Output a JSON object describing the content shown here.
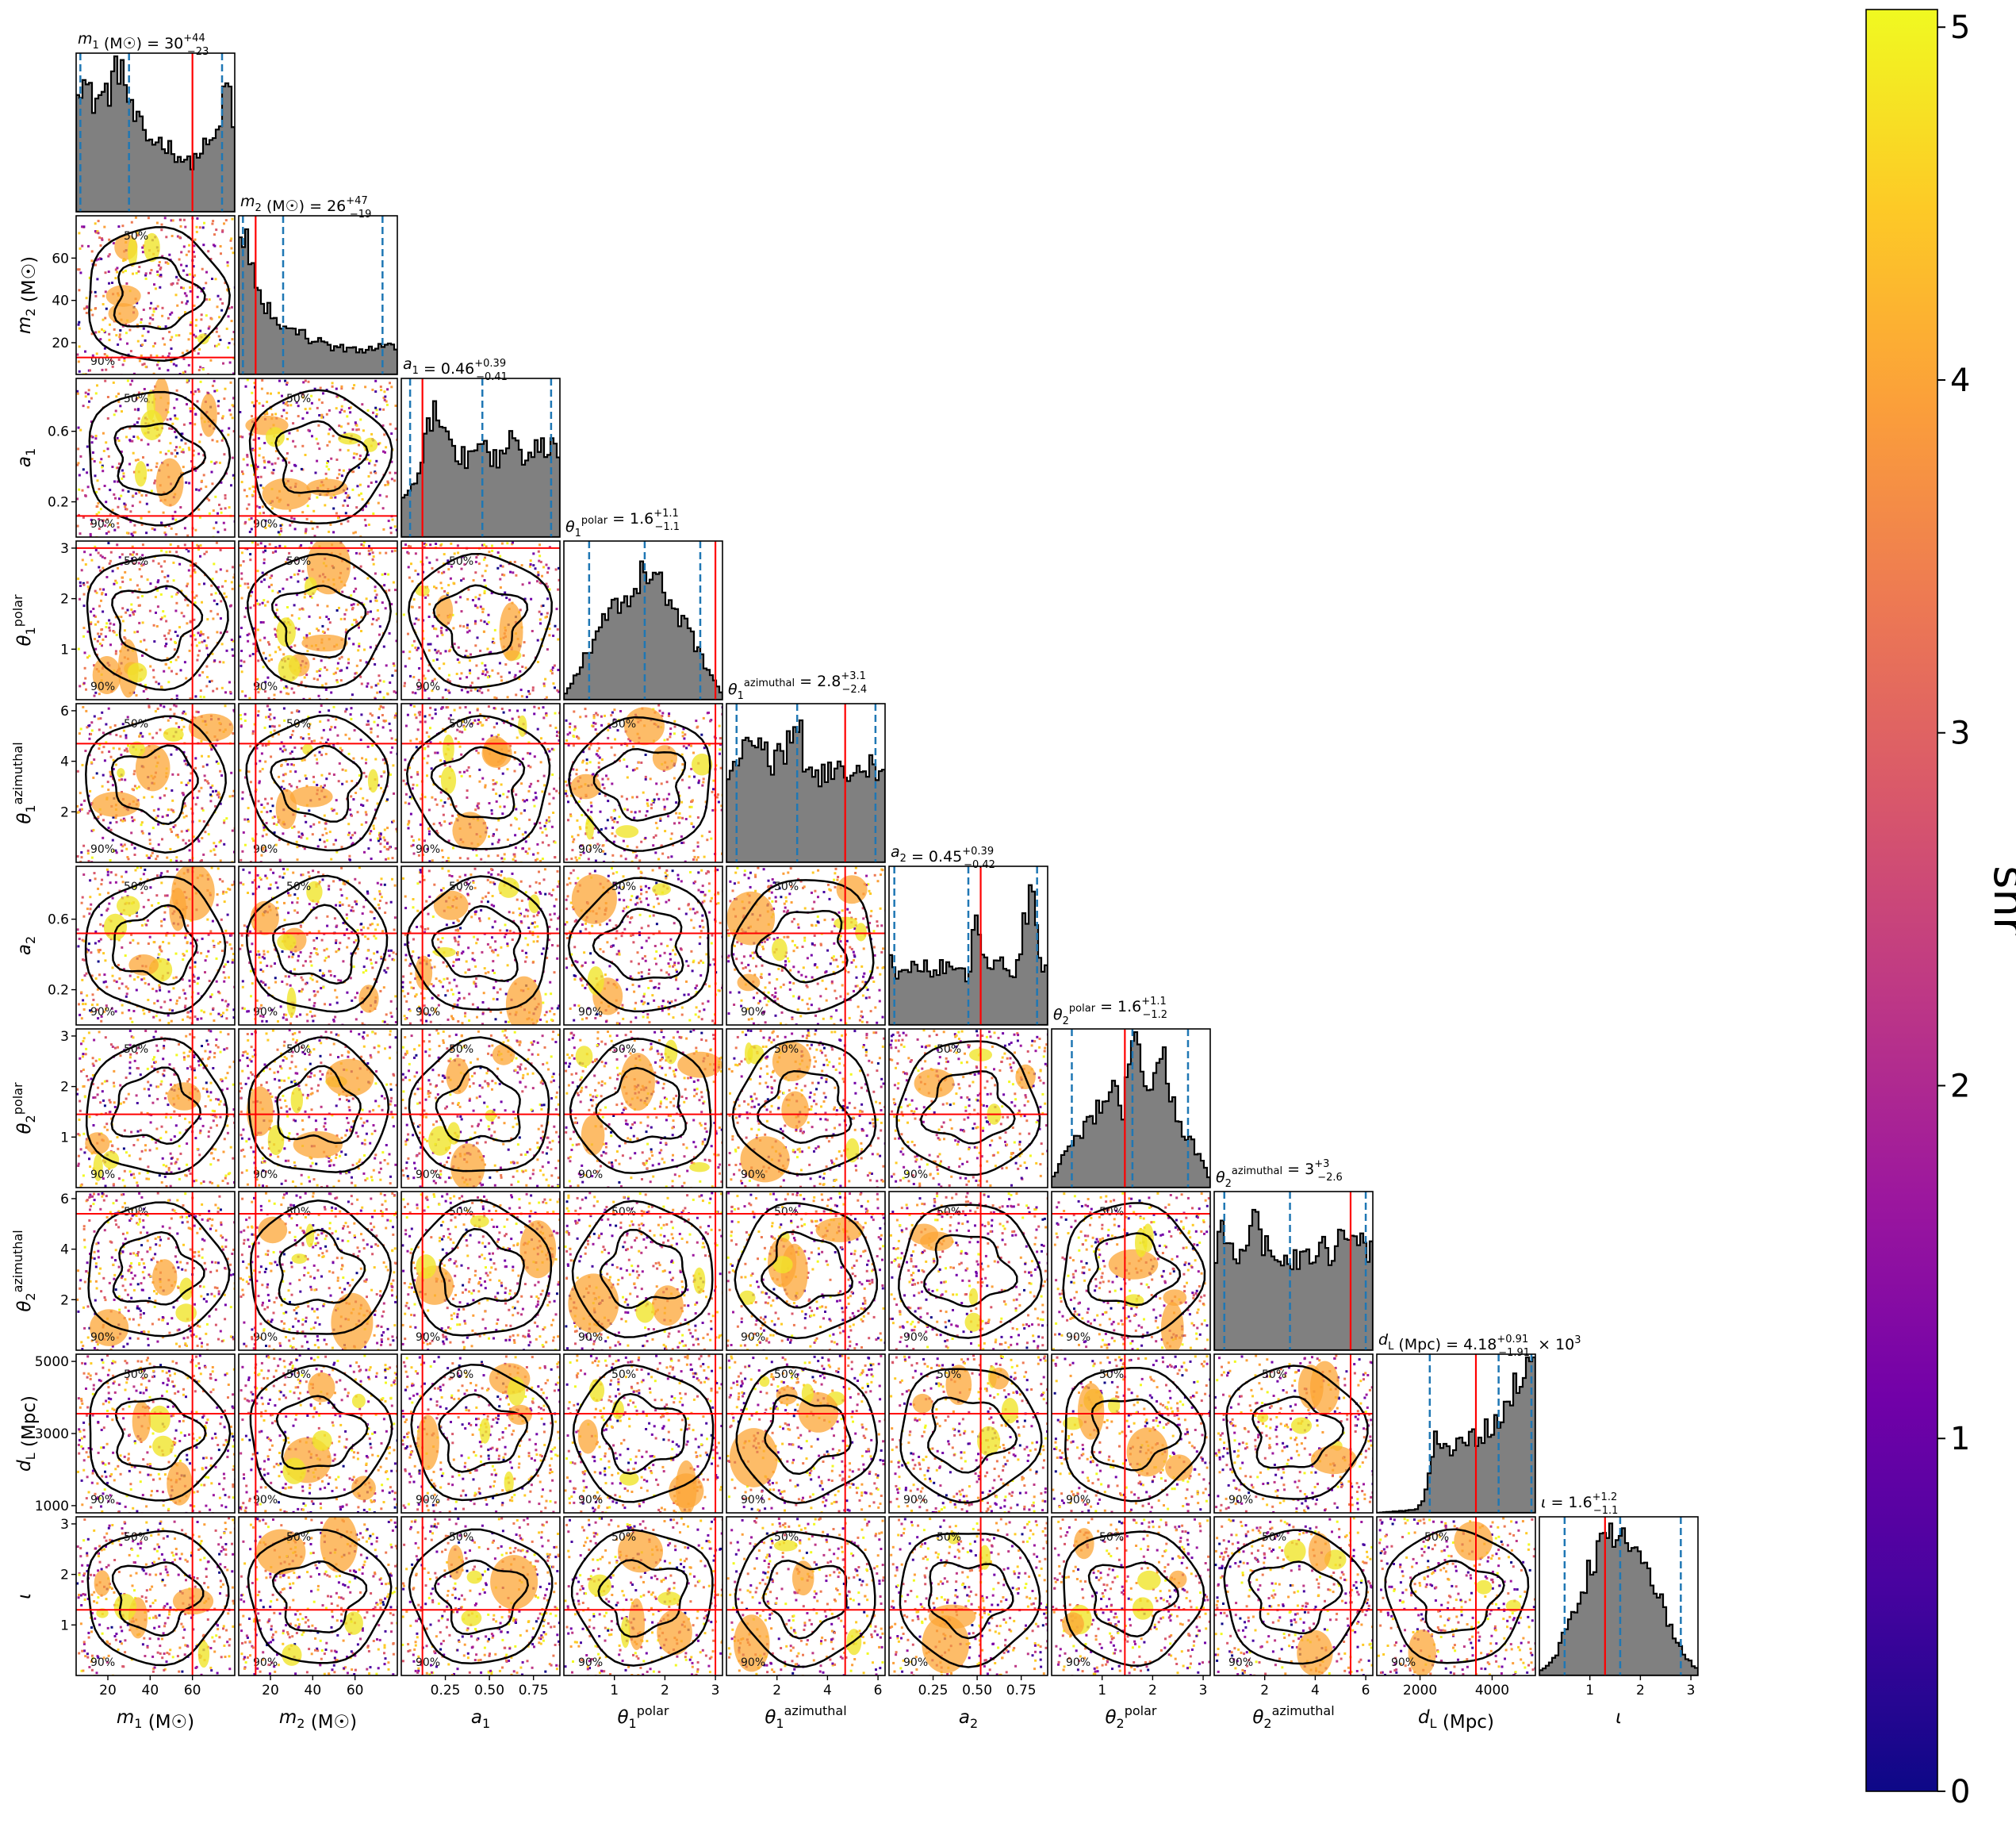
{
  "chart_data": {
    "type": "corner",
    "parameters": [
      {
        "key": "m1",
        "label": "m1 (M☉)",
        "sym": "m",
        "sub": "1",
        "sup": "",
        "unit": " (M☉)",
        "range": [
          5,
          80
        ],
        "ticks": [
          20,
          40,
          60
        ],
        "tick_labels": [
          "20",
          "40",
          "60"
        ],
        "median": 30,
        "lower_err": 23,
        "upper_err": 44,
        "truth": 60,
        "title_value": "= 30",
        "title_sup": "+44",
        "title_sub": "−23",
        "hist_shape": [
          [
            0,
            0.87
          ],
          [
            0.05,
            0.82
          ],
          [
            0.1,
            0.7
          ],
          [
            0.2,
            0.75
          ],
          [
            0.28,
            0.95
          ],
          [
            0.35,
            0.62
          ],
          [
            0.45,
            0.46
          ],
          [
            0.55,
            0.44
          ],
          [
            0.65,
            0.35
          ],
          [
            0.72,
            0.3
          ],
          [
            0.8,
            0.4
          ],
          [
            0.88,
            0.45
          ],
          [
            0.93,
            0.7
          ],
          [
            0.97,
            0.8
          ],
          [
            1,
            0.35
          ]
        ]
      },
      {
        "key": "m2",
        "label": "m2 (M☉)",
        "sym": "m",
        "sub": "2",
        "sup": "",
        "unit": " (M☉)",
        "range": [
          5,
          80
        ],
        "ticks": [
          20,
          40,
          60
        ],
        "tick_labels": [
          "20",
          "40",
          "60"
        ],
        "median": 26,
        "lower_err": 19,
        "upper_err": 47,
        "truth": 13,
        "title_value": "= 26",
        "title_sup": "+47",
        "title_sub": "−19",
        "hist_shape": [
          [
            0,
            0.82
          ],
          [
            0.04,
            0.92
          ],
          [
            0.1,
            0.6
          ],
          [
            0.2,
            0.38
          ],
          [
            0.3,
            0.3
          ],
          [
            0.45,
            0.23
          ],
          [
            0.6,
            0.17
          ],
          [
            0.75,
            0.15
          ],
          [
            0.85,
            0.17
          ],
          [
            0.92,
            0.2
          ],
          [
            1,
            0.15
          ]
        ]
      },
      {
        "key": "a1",
        "label": "a1",
        "sym": "a",
        "sub": "1",
        "sup": "",
        "unit": "",
        "range": [
          0,
          0.9
        ],
        "ticks": [
          0.25,
          0.5,
          0.75
        ],
        "tick_labels": [
          "0.25",
          "0.50",
          "0.75"
        ],
        "median": 0.46,
        "lower_err": 0.41,
        "upper_err": 0.39,
        "truth": 0.12,
        "title_value": "= 0.46",
        "title_sup": "+0.39",
        "title_sub": "−0.41",
        "hist_shape": [
          [
            0,
            0.28
          ],
          [
            0.08,
            0.3
          ],
          [
            0.15,
            0.6
          ],
          [
            0.22,
            0.9
          ],
          [
            0.3,
            0.55
          ],
          [
            0.4,
            0.5
          ],
          [
            0.5,
            0.55
          ],
          [
            0.6,
            0.5
          ],
          [
            0.7,
            0.6
          ],
          [
            0.8,
            0.5
          ],
          [
            0.9,
            0.58
          ],
          [
            1,
            0.55
          ]
        ]
      },
      {
        "key": "t1p",
        "label": "θ1 polar",
        "sym": "θ",
        "sub": "1",
        "sup": "polar",
        "unit": "",
        "range": [
          0,
          3.14
        ],
        "ticks": [
          1,
          2,
          3
        ],
        "tick_labels": [
          "1",
          "2",
          "3"
        ],
        "median": 1.6,
        "lower_err": 1.1,
        "upper_err": 1.1,
        "truth": 3.0,
        "title_value": "= 1.6",
        "title_sup": "+1.1",
        "title_sub": "−1.1",
        "hist_shape": [
          [
            0,
            0.02
          ],
          [
            0.1,
            0.2
          ],
          [
            0.2,
            0.4
          ],
          [
            0.3,
            0.55
          ],
          [
            0.4,
            0.65
          ],
          [
            0.5,
            0.78
          ],
          [
            0.55,
            0.82
          ],
          [
            0.62,
            0.7
          ],
          [
            0.7,
            0.55
          ],
          [
            0.8,
            0.4
          ],
          [
            0.9,
            0.2
          ],
          [
            1,
            0.03
          ]
        ]
      },
      {
        "key": "t1a",
        "label": "θ1 azimuthal",
        "sym": "θ",
        "sub": "1",
        "sup": "azimuthal",
        "unit": "",
        "range": [
          0,
          6.28
        ],
        "ticks": [
          2,
          4,
          6
        ],
        "tick_labels": [
          "2",
          "4",
          "6"
        ],
        "median": 2.8,
        "lower_err": 2.4,
        "upper_err": 3.1,
        "truth": 4.7,
        "title_value": "= 2.8",
        "title_sup": "+3.1",
        "title_sub": "−2.4",
        "hist_shape": [
          [
            0,
            0.5
          ],
          [
            0.1,
            0.68
          ],
          [
            0.2,
            0.72
          ],
          [
            0.3,
            0.62
          ],
          [
            0.4,
            0.75
          ],
          [
            0.45,
            0.95
          ],
          [
            0.5,
            0.55
          ],
          [
            0.6,
            0.55
          ],
          [
            0.7,
            0.62
          ],
          [
            0.8,
            0.55
          ],
          [
            0.9,
            0.6
          ],
          [
            1,
            0.5
          ]
        ]
      },
      {
        "key": "a2",
        "label": "a2",
        "sym": "a",
        "sub": "2",
        "sup": "",
        "unit": "",
        "range": [
          0,
          0.9
        ],
        "ticks": [
          0.25,
          0.5,
          0.75
        ],
        "tick_labels": [
          "0.25",
          "0.50",
          "0.75"
        ],
        "median": 0.45,
        "lower_err": 0.42,
        "upper_err": 0.39,
        "truth": 0.52,
        "title_value": "= 0.45",
        "title_sup": "+0.39",
        "title_sub": "−0.42",
        "hist_shape": [
          [
            0,
            0.55
          ],
          [
            0.05,
            0.3
          ],
          [
            0.15,
            0.38
          ],
          [
            0.25,
            0.35
          ],
          [
            0.4,
            0.38
          ],
          [
            0.5,
            0.3
          ],
          [
            0.55,
            0.72
          ],
          [
            0.6,
            0.4
          ],
          [
            0.7,
            0.38
          ],
          [
            0.8,
            0.35
          ],
          [
            0.9,
            0.9
          ],
          [
            0.95,
            0.4
          ],
          [
            1,
            0.38
          ]
        ]
      },
      {
        "key": "t2p",
        "label": "θ2 polar",
        "sym": "θ",
        "sub": "2",
        "sup": "polar",
        "unit": "",
        "range": [
          0,
          3.14
        ],
        "ticks": [
          1,
          2,
          3
        ],
        "tick_labels": [
          "1",
          "2",
          "3"
        ],
        "median": 1.6,
        "lower_err": 1.2,
        "upper_err": 1.1,
        "truth": 1.45,
        "title_value": "= 1.6",
        "title_sup": "+1.1",
        "title_sub": "−1.2",
        "hist_shape": [
          [
            0,
            0.05
          ],
          [
            0.1,
            0.25
          ],
          [
            0.2,
            0.35
          ],
          [
            0.3,
            0.5
          ],
          [
            0.4,
            0.62
          ],
          [
            0.45,
            0.5
          ],
          [
            0.52,
            0.95
          ],
          [
            0.6,
            0.55
          ],
          [
            0.7,
            0.82
          ],
          [
            0.8,
            0.4
          ],
          [
            0.9,
            0.25
          ],
          [
            1,
            0.05
          ]
        ]
      },
      {
        "key": "t2a",
        "label": "θ2 azimuthal",
        "sym": "θ",
        "sub": "2",
        "sup": "azimuthal",
        "unit": "",
        "range": [
          0,
          6.28
        ],
        "ticks": [
          2,
          4,
          6
        ],
        "tick_labels": [
          "2",
          "4",
          "6"
        ],
        "median": 3.0,
        "lower_err": 2.6,
        "upper_err": 3.0,
        "truth": 5.4,
        "title_value": "= 3",
        "title_sup": "+3",
        "title_sub": "−2.6",
        "hist_shape": [
          [
            0,
            0.6
          ],
          [
            0.08,
            0.78
          ],
          [
            0.15,
            0.62
          ],
          [
            0.25,
            0.8
          ],
          [
            0.35,
            0.6
          ],
          [
            0.45,
            0.52
          ],
          [
            0.55,
            0.6
          ],
          [
            0.65,
            0.65
          ],
          [
            0.75,
            0.62
          ],
          [
            0.85,
            0.78
          ],
          [
            0.92,
            0.65
          ],
          [
            1,
            0.6
          ]
        ]
      },
      {
        "key": "dL",
        "label": "dL (Mpc)",
        "sym": "d",
        "sub": "L",
        "sup": "",
        "unit": " (Mpc)",
        "range": [
          800,
          5200
        ],
        "ticks": [
          2000,
          4000
        ],
        "tick_labels": [
          "2000",
          "4000"
        ],
        "median": 4180,
        "lower_err": 1910,
        "upper_err": 910,
        "truth": 3550,
        "title_value": "= 4.18",
        "title_sup": "+0.91",
        "title_sub": "−1.91",
        "title_suffix": " × 10",
        "title_suffix_sup": "3",
        "hist_shape": [
          [
            0,
            0
          ],
          [
            0.25,
            0.02
          ],
          [
            0.3,
            0.08
          ],
          [
            0.38,
            0.5
          ],
          [
            0.45,
            0.38
          ],
          [
            0.55,
            0.45
          ],
          [
            0.65,
            0.5
          ],
          [
            0.75,
            0.55
          ],
          [
            0.85,
            0.72
          ],
          [
            0.95,
            0.95
          ],
          [
            1,
            0.9
          ]
        ]
      },
      {
        "key": "iota",
        "label": "ι",
        "sym": "ι",
        "sub": "",
        "sup": "",
        "unit": "",
        "range": [
          0,
          3.14
        ],
        "ticks": [
          1,
          2,
          3
        ],
        "tick_labels": [
          "1",
          "2",
          "3"
        ],
        "median": 1.6,
        "lower_err": 1.1,
        "upper_err": 1.2,
        "truth": 1.3,
        "title_value": "= 1.6",
        "title_sup": "+1.2",
        "title_sub": "−1.1",
        "hist_shape": [
          [
            0,
            0.02
          ],
          [
            0.1,
            0.12
          ],
          [
            0.2,
            0.35
          ],
          [
            0.3,
            0.62
          ],
          [
            0.4,
            0.82
          ],
          [
            0.5,
            0.88
          ],
          [
            0.6,
            0.8
          ],
          [
            0.7,
            0.6
          ],
          [
            0.8,
            0.38
          ],
          [
            0.9,
            0.15
          ],
          [
            1,
            0.03
          ]
        ]
      }
    ],
    "y_axis_ticks": {
      "m2": {
        "ticks": [
          20,
          40,
          60
        ],
        "tick_labels": [
          "20",
          "40",
          "60"
        ]
      },
      "a1": {
        "ticks": [
          0.2,
          0.6
        ],
        "tick_labels": [
          "0.2",
          "0.6"
        ]
      },
      "t1p": {
        "ticks": [
          1,
          2,
          3
        ],
        "tick_labels": [
          "1",
          "2",
          "3"
        ]
      },
      "t1a": {
        "ticks": [
          2,
          4,
          6
        ],
        "tick_labels": [
          "2",
          "4",
          "6"
        ]
      },
      "a2": {
        "ticks": [
          0.2,
          0.6
        ],
        "tick_labels": [
          "0.2",
          "0.6"
        ]
      },
      "t2p": {
        "ticks": [
          1,
          2,
          3
        ],
        "tick_labels": [
          "1",
          "2",
          "3"
        ]
      },
      "t2a": {
        "ticks": [
          2,
          4,
          6
        ],
        "tick_labels": [
          "2",
          "4",
          "6"
        ]
      },
      "dL": {
        "ticks": [
          1000,
          3000,
          5000
        ],
        "tick_labels": [
          "1000",
          "3000",
          "5000"
        ]
      },
      "iota": {
        "ticks": [
          1,
          2,
          3
        ],
        "tick_labels": [
          "1",
          "2",
          "3"
        ]
      }
    },
    "contour_levels": [
      "50%",
      "90%"
    ],
    "quantile_lines": "dashed blue at 5%, 50%, 95%",
    "truth_line_color": "#ff0000",
    "hist_fill_color": "#808080",
    "quantile_color": "#1f77b4",
    "colorbar": {
      "label": "snr",
      "range": [
        0,
        5.05
      ],
      "ticks": [
        0,
        1,
        2,
        3,
        4,
        5
      ],
      "tick_labels": [
        "0",
        "1",
        "2",
        "3",
        "4",
        "5"
      ],
      "colormap": "plasma",
      "stops": [
        "#0d0887",
        "#46039f",
        "#7201a8",
        "#9c179e",
        "#bd3786",
        "#d8576b",
        "#ed7953",
        "#fb9f3a",
        "#fdca26",
        "#f0f921"
      ]
    }
  }
}
